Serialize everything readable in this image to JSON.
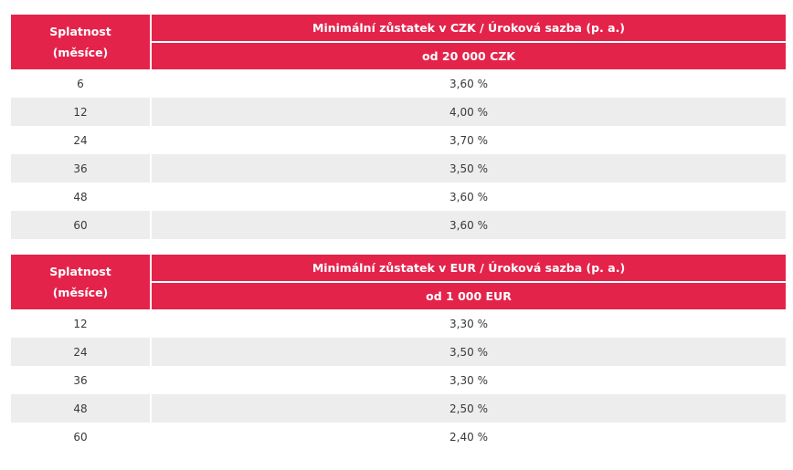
{
  "czk_table": {
    "col1_header_line1": "Splatnost",
    "col1_header_line2": "(měsíce)",
    "col2_header": "Minimální zůstatek v CZK / Úroková sazba (p. a.)",
    "col2_subheader": "od 20 000 CZK",
    "rows": [
      {
        "term": "6",
        "rate": "3,60 %"
      },
      {
        "term": "12",
        "rate": "4,00 %"
      },
      {
        "term": "24",
        "rate": "3,70 %"
      },
      {
        "term": "36",
        "rate": "3,50 %"
      },
      {
        "term": "48",
        "rate": "3,60 %"
      },
      {
        "term": "60",
        "rate": "3,60 %"
      }
    ]
  },
  "eur_table": {
    "col1_header_line1": "Splatnost",
    "col1_header_line2": "(měsíce)",
    "col2_header": "Minimální zůstatek v EUR / Úroková sazba (p. a.)",
    "col2_subheader": "od 1 000 EUR",
    "rows": [
      {
        "term": "12",
        "rate": "3,30 %"
      },
      {
        "term": "24",
        "rate": "3,50 %"
      },
      {
        "term": "36",
        "rate": "3,30 %"
      },
      {
        "term": "48",
        "rate": "2,50 %"
      },
      {
        "term": "60",
        "rate": "2,40 %"
      }
    ]
  },
  "colors": {
    "header_bg": "#e4234b",
    "header_text": "#ffffff",
    "row_alt_bg": "#ededed",
    "body_text": "#3a3a3a"
  }
}
